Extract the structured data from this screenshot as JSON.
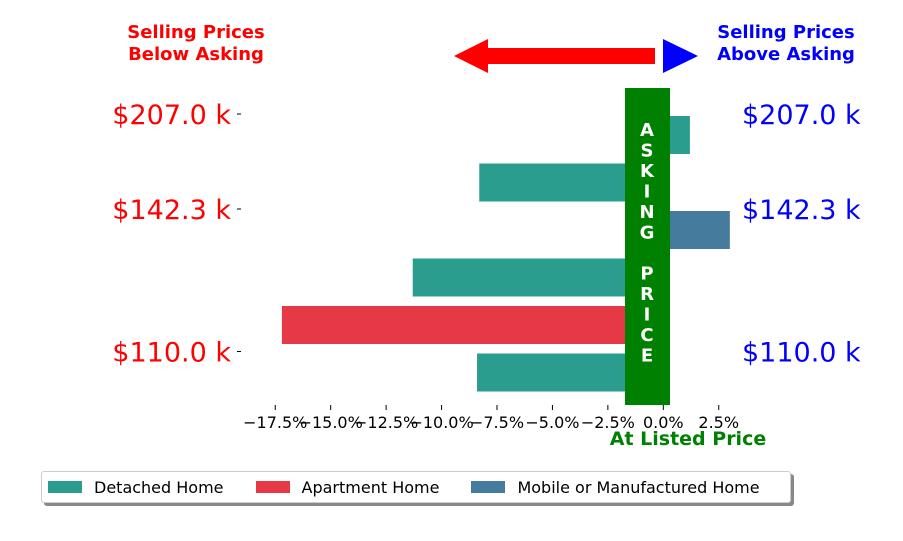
{
  "chart_data": {
    "type": "bar",
    "orientation": "horizontal",
    "header_left": [
      "Selling Prices",
      "Below Asking"
    ],
    "header_right": [
      "Selling Prices",
      "Above Asking"
    ],
    "center_band_label": [
      "A",
      "S",
      "K",
      "I",
      "N",
      "G",
      "",
      "P",
      "R",
      "I",
      "C",
      "E"
    ],
    "x_axis_caption": "At Listed Price",
    "x_ticks": [
      "−17.5%",
      "−15.0%",
      "−12.5%",
      "−10.0%",
      "−7.5%",
      "−5.0%",
      "−2.5%",
      "0.0%",
      "2.5%"
    ],
    "x_tick_values": [
      -17.5,
      -15.0,
      -12.5,
      -10.0,
      -7.5,
      -5.0,
      -2.5,
      0.0,
      2.5
    ],
    "xlim": [
      -19.0,
      4.0
    ],
    "left_price_labels": [
      "$207.0 k",
      "$142.3 k",
      "$110.0 k"
    ],
    "right_price_labels": [
      "$207.0 k",
      "$142.3 k",
      "$110.0 k"
    ],
    "price_label_rows": [
      0,
      2,
      5
    ],
    "bars": [
      {
        "row": 0,
        "series": "Detached Home",
        "value": 1.2
      },
      {
        "row": 1,
        "series": "Detached Home",
        "value": -8.3
      },
      {
        "row": 2,
        "series": "Mobile or Manufactured Home",
        "value": 3.0
      },
      {
        "row": 3,
        "series": "Detached Home",
        "value": -11.3
      },
      {
        "row": 4,
        "series": "Apartment Home",
        "value": -17.2
      },
      {
        "row": 5,
        "series": "Detached Home",
        "value": -8.4
      }
    ],
    "series": [
      {
        "name": "Detached Home",
        "color": "#2a9d8f"
      },
      {
        "name": "Apartment Home",
        "color": "#e63946"
      },
      {
        "name": "Mobile or Manufactured Home",
        "color": "#457b9d"
      }
    ],
    "colors": {
      "below": "#ff0000",
      "above": "#0000ff",
      "asking_band": "#008000",
      "caption": "#008000"
    },
    "grid": false,
    "legend_position": "bottom"
  }
}
